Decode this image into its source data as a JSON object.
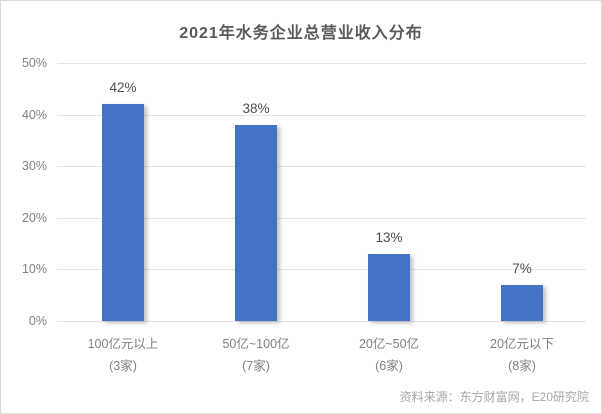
{
  "title": "2021年水务企业总营业收入分布",
  "source": "资料来源：东方财富网，E20研究院",
  "colors": {
    "bar": "#4472c4",
    "title_text": "#595959",
    "value_text": "#4d4d4d",
    "axis_text": "#808080",
    "grid": "#e2e2e2",
    "source_text": "#a6a6a6",
    "frame_border": "#d9d9d9",
    "background": "#ffffff"
  },
  "chart_data": {
    "type": "bar",
    "title": "2021年水务企业总营业收入分布",
    "categories": [
      "100亿元以上",
      "50亿~100亿",
      "20亿~50亿",
      "20亿元以下"
    ],
    "category_counts": [
      "(3家)",
      "(7家)",
      "(6家)",
      "(8家)"
    ],
    "values": [
      42,
      38,
      13,
      7
    ],
    "value_labels": [
      "42%",
      "38%",
      "13%",
      "7%"
    ],
    "y_ticks": [
      0,
      10,
      20,
      30,
      40,
      50
    ],
    "y_tick_labels": [
      "0%",
      "10%",
      "20%",
      "30%",
      "40%",
      "50%"
    ],
    "ylim": [
      0,
      50
    ],
    "xlabel": "",
    "ylabel": "",
    "grid": true,
    "legend": false,
    "source": "资料来源：东方财富网，E20研究院"
  }
}
